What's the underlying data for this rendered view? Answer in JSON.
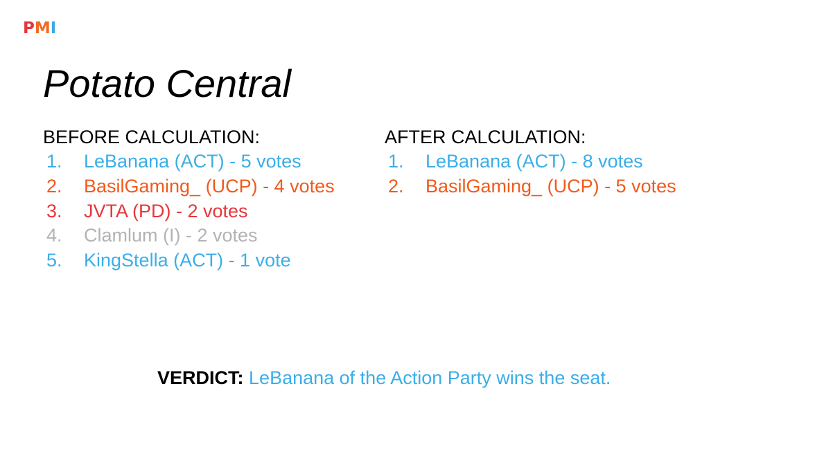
{
  "logo": {
    "p": "P",
    "m": "M",
    "i": "I"
  },
  "title": "Potato Central",
  "before": {
    "heading": "BEFORE CALCULATION:",
    "items": [
      {
        "num": "1.",
        "text": "LeBanana (ACT) - 5 votes",
        "color": "#3aaee8"
      },
      {
        "num": "2.",
        "text": "BasilGaming_ (UCP) - 4 votes",
        "color": "#f05a1c"
      },
      {
        "num": "3.",
        "text": "JVTA (PD) - 2 votes",
        "color": "#e8363a"
      },
      {
        "num": "4.",
        "text": "Clamlum (I) - 2 votes",
        "color": "#b3b3b3"
      },
      {
        "num": "5.",
        "text": "KingStella (ACT) - 1 vote",
        "color": "#3aaee8"
      }
    ]
  },
  "after": {
    "heading": "AFTER CALCULATION:",
    "items": [
      {
        "num": "1.",
        "text": "LeBanana (ACT) - 8 votes",
        "color": "#3aaee8"
      },
      {
        "num": "2.",
        "text": "BasilGaming_ (UCP) - 5 votes",
        "color": "#f05a1c"
      }
    ]
  },
  "verdict": {
    "label": "VERDICT:",
    "text": "LeBanana of the Action Party wins the seat.",
    "color": "#3aaee8"
  },
  "colors": {
    "act": "#3aaee8",
    "ucp": "#f05a1c",
    "pd": "#e8363a",
    "independent": "#b3b3b3"
  }
}
